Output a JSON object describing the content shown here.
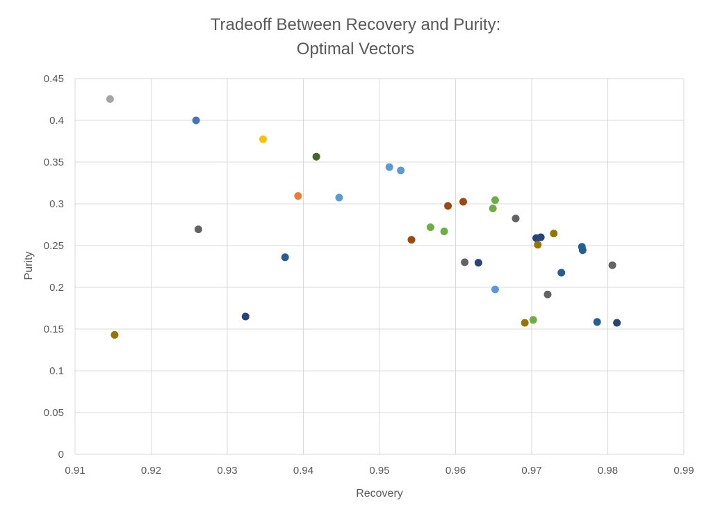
{
  "chart_data": {
    "type": "scatter",
    "title_line1": "Tradeoff Between Recovery and Purity:",
    "title_line2": "Optimal Vectors",
    "xlabel": "Recovery",
    "ylabel": "Purity",
    "xlim": [
      0.91,
      0.99
    ],
    "ylim": [
      0,
      0.45
    ],
    "xticks": [
      0.91,
      0.92,
      0.93,
      0.94,
      0.95,
      0.96,
      0.97,
      0.98,
      0.99
    ],
    "yticks": [
      0,
      0.05,
      0.1,
      0.15,
      0.2,
      0.25,
      0.3,
      0.35,
      0.4,
      0.45
    ],
    "xtick_labels": [
      "0.91",
      "0.92",
      "0.93",
      "0.94",
      "0.95",
      "0.96",
      "0.97",
      "0.98",
      "0.99"
    ],
    "ytick_labels": [
      "0",
      "0.05",
      "0.1",
      "0.15",
      "0.2",
      "0.25",
      "0.3",
      "0.35",
      "0.4",
      "0.45"
    ],
    "grid": true,
    "points": [
      {
        "x": 0.9146,
        "y": 0.4255,
        "color": "#a5a5a5"
      },
      {
        "x": 0.9259,
        "y": 0.4,
        "color": "#4472c4"
      },
      {
        "x": 0.9347,
        "y": 0.3775,
        "color": "#ffc000"
      },
      {
        "x": 0.9417,
        "y": 0.3565,
        "color": "#43682b"
      },
      {
        "x": 0.9393,
        "y": 0.3095,
        "color": "#ed7d31"
      },
      {
        "x": 0.9447,
        "y": 0.3075,
        "color": "#5b9bd5"
      },
      {
        "x": 0.9262,
        "y": 0.2695,
        "color": "#636363"
      },
      {
        "x": 0.9376,
        "y": 0.236,
        "color": "#255e91"
      },
      {
        "x": 0.9324,
        "y": 0.165,
        "color": "#264478"
      },
      {
        "x": 0.9152,
        "y": 0.143,
        "color": "#997300"
      },
      {
        "x": 0.9513,
        "y": 0.344,
        "color": "#5b9bd5"
      },
      {
        "x": 0.9528,
        "y": 0.34,
        "color": "#5b9bd5"
      },
      {
        "x": 0.961,
        "y": 0.3025,
        "color": "#9e480e"
      },
      {
        "x": 0.959,
        "y": 0.2975,
        "color": "#9e480e"
      },
      {
        "x": 0.9542,
        "y": 0.257,
        "color": "#9e480e"
      },
      {
        "x": 0.9567,
        "y": 0.272,
        "color": "#70ad47"
      },
      {
        "x": 0.9585,
        "y": 0.267,
        "color": "#70ad47"
      },
      {
        "x": 0.9652,
        "y": 0.3045,
        "color": "#70ad47"
      },
      {
        "x": 0.9649,
        "y": 0.2945,
        "color": "#70ad47"
      },
      {
        "x": 0.9679,
        "y": 0.2825,
        "color": "#636363"
      },
      {
        "x": 0.9612,
        "y": 0.23,
        "color": "#636363"
      },
      {
        "x": 0.963,
        "y": 0.2295,
        "color": "#264478"
      },
      {
        "x": 0.9652,
        "y": 0.1975,
        "color": "#5b9bd5"
      },
      {
        "x": 0.9706,
        "y": 0.259,
        "color": "#264478"
      },
      {
        "x": 0.9712,
        "y": 0.26,
        "color": "#264478"
      },
      {
        "x": 0.9729,
        "y": 0.2645,
        "color": "#997300"
      },
      {
        "x": 0.9708,
        "y": 0.251,
        "color": "#997300"
      },
      {
        "x": 0.9766,
        "y": 0.2485,
        "color": "#255e91"
      },
      {
        "x": 0.9767,
        "y": 0.2445,
        "color": "#255e91"
      },
      {
        "x": 0.9739,
        "y": 0.2175,
        "color": "#255e91"
      },
      {
        "x": 0.9721,
        "y": 0.1915,
        "color": "#636363"
      },
      {
        "x": 0.9806,
        "y": 0.2265,
        "color": "#636363"
      },
      {
        "x": 0.9702,
        "y": 0.161,
        "color": "#70ad47"
      },
      {
        "x": 0.9691,
        "y": 0.1575,
        "color": "#997300"
      },
      {
        "x": 0.9786,
        "y": 0.1585,
        "color": "#255e91"
      },
      {
        "x": 0.9812,
        "y": 0.1575,
        "color": "#264478"
      }
    ]
  }
}
